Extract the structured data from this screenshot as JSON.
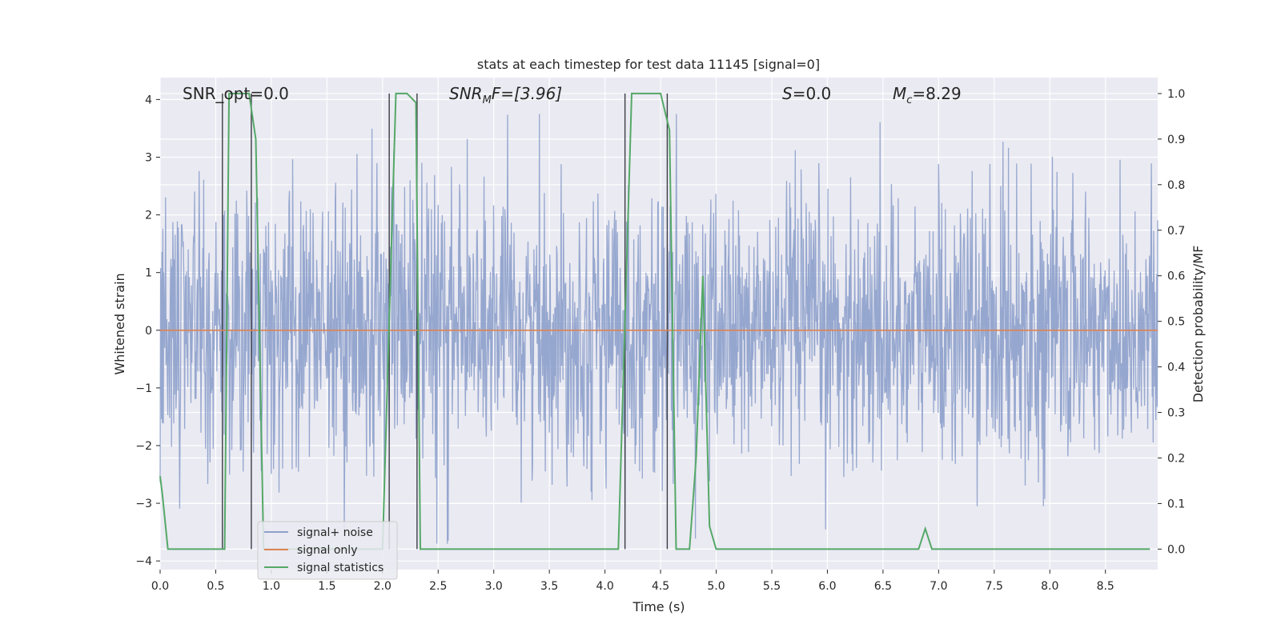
{
  "chart_data": {
    "type": "line",
    "title": "stats at each timestep for test data 11145 [signal=0]",
    "xlabel": "Time (s)",
    "ylabel": "Whitened strain",
    "ylabel_right": "Detection probability/MF",
    "xlim": [
      0.0,
      8.97
    ],
    "ylim": [
      -4.15,
      4.38
    ],
    "ylim_right": [
      -0.045,
      1.035
    ],
    "xticks": [
      "0.0",
      "0.5",
      "1.0",
      "1.5",
      "2.0",
      "2.5",
      "3.0",
      "3.5",
      "4.0",
      "4.5",
      "5.0",
      "5.5",
      "6.0",
      "6.5",
      "7.0",
      "7.5",
      "8.0",
      "8.5"
    ],
    "yticks": [
      "4",
      "3",
      "2",
      "1",
      "0",
      "−1",
      "−2",
      "−3",
      "−4"
    ],
    "yticks_right": [
      "1.0",
      "0.9",
      "0.8",
      "0.7",
      "0.6",
      "0.5",
      "0.4",
      "0.3",
      "0.2",
      "0.1",
      "0.0"
    ],
    "annotations": {
      "snr_opt": "SNR_opt=0.0",
      "snr_mf_main": "SNR",
      "snr_mf_sub": "M",
      "snr_mf_rest": "F=[3.96]",
      "s_main": "S",
      "s_rest": "=0.0",
      "mc_main": "M",
      "mc_sub": "c",
      "mc_rest": "=8.29"
    },
    "grid": true,
    "legend_position": "lower-left",
    "series": [
      {
        "name": "signal+ noise",
        "color": "#8da0cb",
        "style": "whitened noise, approx. amplitude range -3.7 to 3.8"
      },
      {
        "name": "signal only",
        "color": "#dd8452",
        "x": [
          0.0,
          8.97
        ],
        "y": [
          0.0,
          0.0
        ]
      },
      {
        "name": "signal statistics",
        "color": "#55a868",
        "axis": "right",
        "x": [
          0.0,
          0.02,
          0.07,
          0.1,
          0.3,
          0.5,
          0.55,
          0.58,
          0.62,
          0.66,
          0.8,
          0.86,
          0.93,
          1.0,
          1.5,
          1.9,
          2.0,
          2.06,
          2.12,
          2.22,
          2.3,
          2.34,
          2.4,
          3.0,
          3.5,
          4.0,
          4.12,
          4.18,
          4.24,
          4.5,
          4.58,
          4.64,
          4.7,
          4.76,
          4.82,
          4.88,
          4.94,
          5.0,
          5.5,
          6.0,
          6.5,
          6.82,
          6.88,
          6.94,
          7.0,
          8.0,
          8.9
        ],
        "y": [
          0.16,
          0.12,
          0.0,
          0.0,
          0.0,
          0.0,
          0.0,
          0.0,
          1.0,
          1.0,
          1.0,
          0.9,
          0.0,
          0.0,
          0.0,
          0.0,
          0.0,
          0.5,
          1.0,
          1.0,
          0.98,
          0.0,
          0.0,
          0.0,
          0.0,
          0.0,
          0.0,
          0.5,
          1.0,
          1.0,
          0.92,
          0.0,
          0.0,
          0.0,
          0.2,
          0.6,
          0.05,
          0.0,
          0.0,
          0.0,
          0.0,
          0.0,
          0.045,
          0.0,
          0.0,
          0.0,
          0.0
        ]
      }
    ],
    "vertical_markers": [
      0.56,
      0.82,
      2.06,
      2.31,
      4.18,
      4.56
    ]
  }
}
